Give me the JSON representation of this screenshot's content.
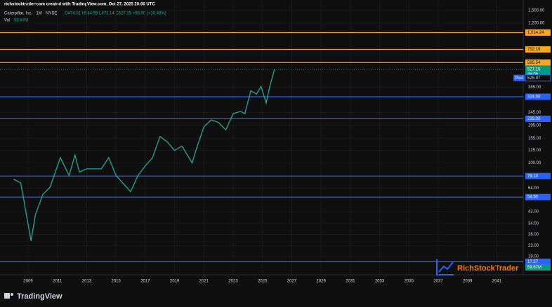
{
  "chart_data": {
    "type": "line",
    "credit": "richstocktrader-com created with TradingView.com, Oct 27, 2025 20:00 UTC",
    "title": "Caterpillar, Inc. · 1M · NYSE",
    "subtitle": "O474.01 H544.99 L471.14 C527.15 +50.00 (+10.48%)",
    "volume_label": {
      "tag": "Vol",
      "value": "59.67M"
    },
    "log_scale": true,
    "grid": true,
    "x": [
      2008.0,
      2008.5,
      2009.2,
      2009.5,
      2010.0,
      2010.5,
      2011.2,
      2011.8,
      2012.2,
      2012.5,
      2013.0,
      2014.0,
      2014.5,
      2015.0,
      2016.0,
      2016.5,
      2017.0,
      2017.5,
      2018.0,
      2018.5,
      2019.0,
      2019.5,
      2020.2,
      2020.5,
      2021.0,
      2021.5,
      2022.0,
      2022.5,
      2023.0,
      2023.5,
      2023.8,
      2024.2,
      2024.6,
      2024.9,
      2025.25,
      2025.5,
      2025.82
    ],
    "series": [
      {
        "color": "#26a69a",
        "values": [
          75,
          70,
          25,
          40,
          57,
          65,
          110,
          80,
          115,
          85,
          90,
          90,
          110,
          80,
          60,
          80,
          95,
          110,
          160,
          145,
          125,
          135,
          100,
          130,
          190,
          215,
          205,
          180,
          240,
          250,
          240,
          360,
          340,
          390,
          290,
          390,
          527.15
        ]
      }
    ],
    "xlim": [
      2007.08,
      2042.8
    ],
    "ylim": [
      13.7,
      1810
    ],
    "xticks": [
      2009,
      2011,
      2013,
      2015,
      2017,
      2019,
      2021,
      2023,
      2025,
      2027,
      2029,
      2031,
      2033,
      2035,
      2037,
      2039,
      2041
    ],
    "yticks": [
      {
        "value": 1500,
        "label": "1,500.00"
      },
      {
        "value": 1200,
        "label": "1,200.00"
      },
      {
        "value": 385,
        "label": "385.00"
      },
      {
        "value": 245,
        "label": "245.00"
      },
      {
        "value": 195,
        "label": "195.00"
      },
      {
        "value": 155,
        "label": "155.00"
      },
      {
        "value": 125,
        "label": "125.00"
      },
      {
        "value": 100,
        "label": "100.00"
      },
      {
        "value": 64,
        "label": "64.00"
      },
      {
        "value": 42,
        "label": "42.00"
      },
      {
        "value": 34,
        "label": "34.00"
      },
      {
        "value": 28,
        "label": "28.00"
      },
      {
        "value": 23,
        "label": "23.00"
      },
      {
        "value": 19,
        "label": "19.00"
      }
    ],
    "levels": [
      {
        "value": 1014.24,
        "label": "1,014.24",
        "color": "#f5a623"
      },
      {
        "value": 752.19,
        "color": "#f5a623"
      },
      {
        "value": 595.54,
        "color": "#f5a623"
      },
      {
        "value": 324.5,
        "label": "324.50",
        "color": "#2962ff"
      },
      {
        "value": 219.2,
        "label": "219.20",
        "color": "#2962ff"
      },
      {
        "value": 79.19,
        "color": "#2962ff"
      },
      {
        "value": 54.5,
        "label": "54.50",
        "color": "#2962ff"
      },
      {
        "value": 17.27,
        "color": "#2962ff"
      }
    ],
    "last": {
      "value": 527.15,
      "countdown": "4d 0h",
      "color": "#089981"
    },
    "post": {
      "tag": "Post",
      "value": 525.97,
      "color": "#2962ff"
    },
    "volume_tag": {
      "value": "59.67M",
      "color": "#089981"
    },
    "watermark": "RichStockTrader",
    "footer": "TradingView"
  }
}
